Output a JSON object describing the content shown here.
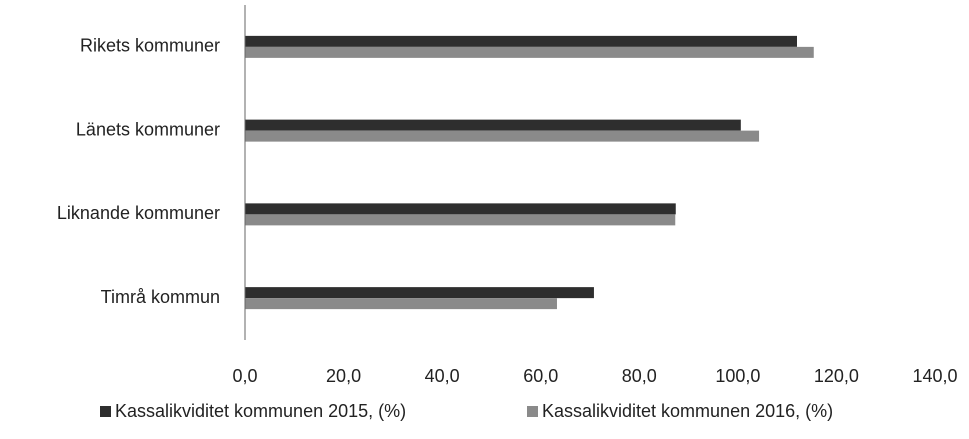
{
  "chart_data": {
    "type": "hbar",
    "categories": [
      "Rikets kommuner",
      "Länets kommuner",
      "Liknande kommuner",
      "Timrå kommun"
    ],
    "series": [
      {
        "name": "Kassalikviditet kommunen 2015, (%)",
        "color": "#2e2e2e",
        "values": [
          112,
          100.6,
          87.4,
          70.8
        ]
      },
      {
        "name": "Kassalikviditet kommunen 2016, (%)",
        "color": "#8a8a8a",
        "values": [
          115.4,
          104.3,
          87.3,
          63.3
        ]
      }
    ],
    "xlim": [
      0,
      140
    ],
    "xticks": [
      {
        "value": 0,
        "label": "0,0"
      },
      {
        "value": 20,
        "label": "20,0"
      },
      {
        "value": 40,
        "label": "40,0"
      },
      {
        "value": 60,
        "label": "60,0"
      },
      {
        "value": 80,
        "label": "80,0"
      },
      {
        "value": 100,
        "label": "100,0"
      },
      {
        "value": 120,
        "label": "120,0"
      },
      {
        "value": 140,
        "label": "140,0"
      }
    ],
    "legend": "bottom"
  }
}
